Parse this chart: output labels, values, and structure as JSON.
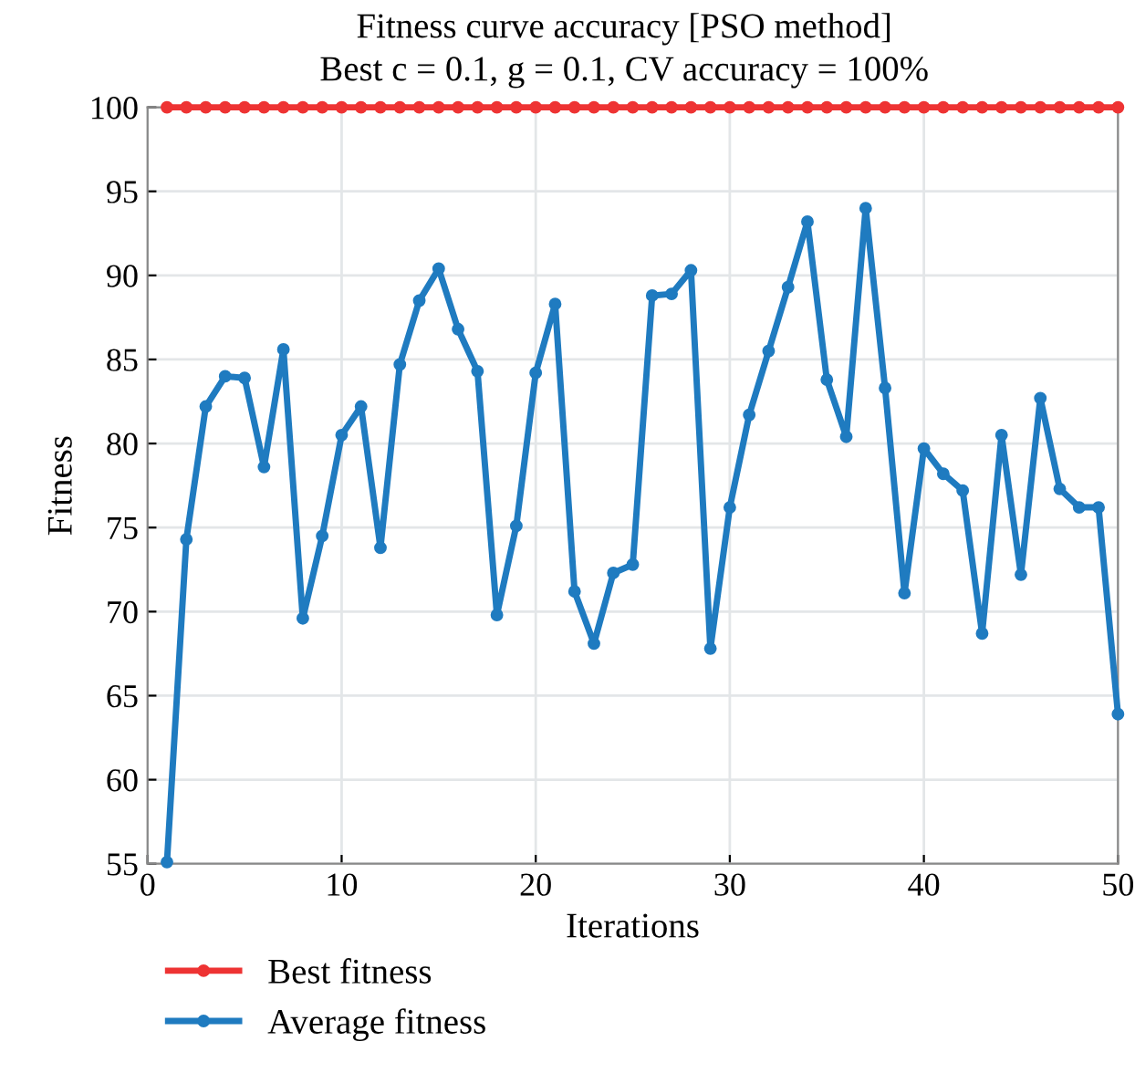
{
  "chart_data": {
    "type": "line",
    "title": "Fitness curve accuracy [PSO method]",
    "subtitle": "Best c = 0.1, g = 0.1, CV accuracy = 100%",
    "xlabel": "Iterations",
    "ylabel": "Fitness",
    "x": [
      1,
      2,
      3,
      4,
      5,
      6,
      7,
      8,
      9,
      10,
      11,
      12,
      13,
      14,
      15,
      16,
      17,
      18,
      19,
      20,
      21,
      22,
      23,
      24,
      25,
      26,
      27,
      28,
      29,
      30,
      31,
      32,
      33,
      34,
      35,
      36,
      37,
      38,
      39,
      40,
      41,
      42,
      43,
      44,
      45,
      46,
      47,
      48,
      49,
      50
    ],
    "series": [
      {
        "name": "Best fitness",
        "color": "#ee3333",
        "values": [
          100,
          100,
          100,
          100,
          100,
          100,
          100,
          100,
          100,
          100,
          100,
          100,
          100,
          100,
          100,
          100,
          100,
          100,
          100,
          100,
          100,
          100,
          100,
          100,
          100,
          100,
          100,
          100,
          100,
          100,
          100,
          100,
          100,
          100,
          100,
          100,
          100,
          100,
          100,
          100,
          100,
          100,
          100,
          100,
          100,
          100,
          100,
          100,
          100,
          100
        ]
      },
      {
        "name": "Average fitness",
        "color": "#1f7bc0",
        "values": [
          55.1,
          74.3,
          82.2,
          84.0,
          83.9,
          78.6,
          85.6,
          69.6,
          74.5,
          80.5,
          82.2,
          73.8,
          84.7,
          88.5,
          90.4,
          86.8,
          84.3,
          69.8,
          75.1,
          84.2,
          88.3,
          71.2,
          68.1,
          72.3,
          72.8,
          88.8,
          88.9,
          90.3,
          67.8,
          76.2,
          81.7,
          85.5,
          89.3,
          93.2,
          83.8,
          80.4,
          94.0,
          83.3,
          71.1,
          79.7,
          78.2,
          77.2,
          68.7,
          80.5,
          72.2,
          82.7,
          77.3,
          76.2,
          76.2,
          63.9
        ]
      }
    ],
    "xlim": [
      0,
      50
    ],
    "xticks": [
      0,
      10,
      20,
      30,
      40,
      50
    ],
    "ylim": [
      55,
      100
    ],
    "yticks": [
      55,
      60,
      65,
      70,
      75,
      80,
      85,
      90,
      95,
      100
    ],
    "grid": true,
    "legend": "bottom",
    "marker": "circle",
    "line_style": "solid"
  }
}
